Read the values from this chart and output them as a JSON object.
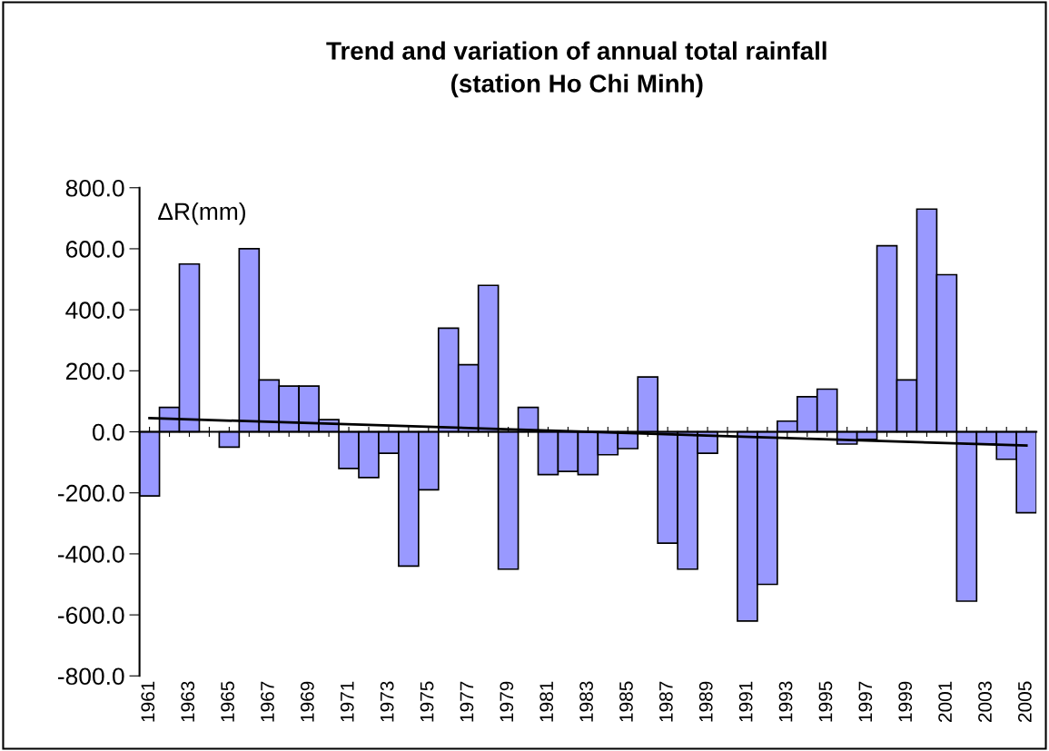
{
  "chart_data": {
    "type": "bar",
    "title": "Trend and variation of annual total rainfall\n(station Ho Chi Minh)",
    "ylabel": "ΔR(mm)",
    "categories": [
      "1961",
      null,
      "1963",
      null,
      "1965",
      null,
      "1967",
      null,
      "1969",
      null,
      "1971",
      null,
      "1973",
      null,
      "1975",
      null,
      "1977",
      null,
      "1979",
      null,
      "1981",
      null,
      "1983",
      null,
      "1985",
      null,
      "1987",
      null,
      "1989",
      null,
      "1991",
      null,
      "1993",
      null,
      "1995",
      null,
      "1997",
      null,
      "1999",
      null,
      "2001",
      null,
      "2003",
      null,
      "2005"
    ],
    "series": [
      {
        "color": "#9999ff",
        "values": [
          -210,
          80,
          550,
          null,
          -50,
          600,
          170,
          150,
          150,
          40,
          -120,
          -150,
          -70,
          -440,
          -190,
          340,
          220,
          480,
          -450,
          80,
          -140,
          -130,
          -140,
          -75,
          -55,
          180,
          -365,
          -450,
          -70,
          null,
          -620,
          -500,
          35,
          115,
          140,
          -40,
          -25,
          610,
          170,
          730,
          515,
          -555,
          -40,
          -90,
          -265
        ]
      },
      {
        "type": "line",
        "color": "#000000",
        "values": [
          45,
          null,
          null,
          null,
          null,
          null,
          null,
          null,
          null,
          null,
          null,
          null,
          null,
          null,
          null,
          null,
          null,
          null,
          null,
          null,
          null,
          null,
          null,
          null,
          null,
          null,
          null,
          null,
          null,
          null,
          null,
          null,
          null,
          null,
          null,
          null,
          null,
          null,
          null,
          null,
          null,
          null,
          null,
          null,
          -45
        ]
      }
    ],
    "ylim": [
      -800,
      800
    ],
    "yticks": [
      {
        "value": -800,
        "label": "-800.0"
      },
      {
        "value": -600,
        "label": "-600.0"
      },
      {
        "value": -400,
        "label": "-400.0"
      },
      {
        "value": -200,
        "label": "-200.0"
      },
      {
        "value": 0,
        "label": "0.0"
      },
      {
        "value": 200,
        "label": "200.0"
      },
      {
        "value": 400,
        "label": "400.0"
      },
      {
        "value": 600,
        "label": "600.0"
      },
      {
        "value": 800,
        "label": "800.0"
      }
    ],
    "legend": false
  }
}
